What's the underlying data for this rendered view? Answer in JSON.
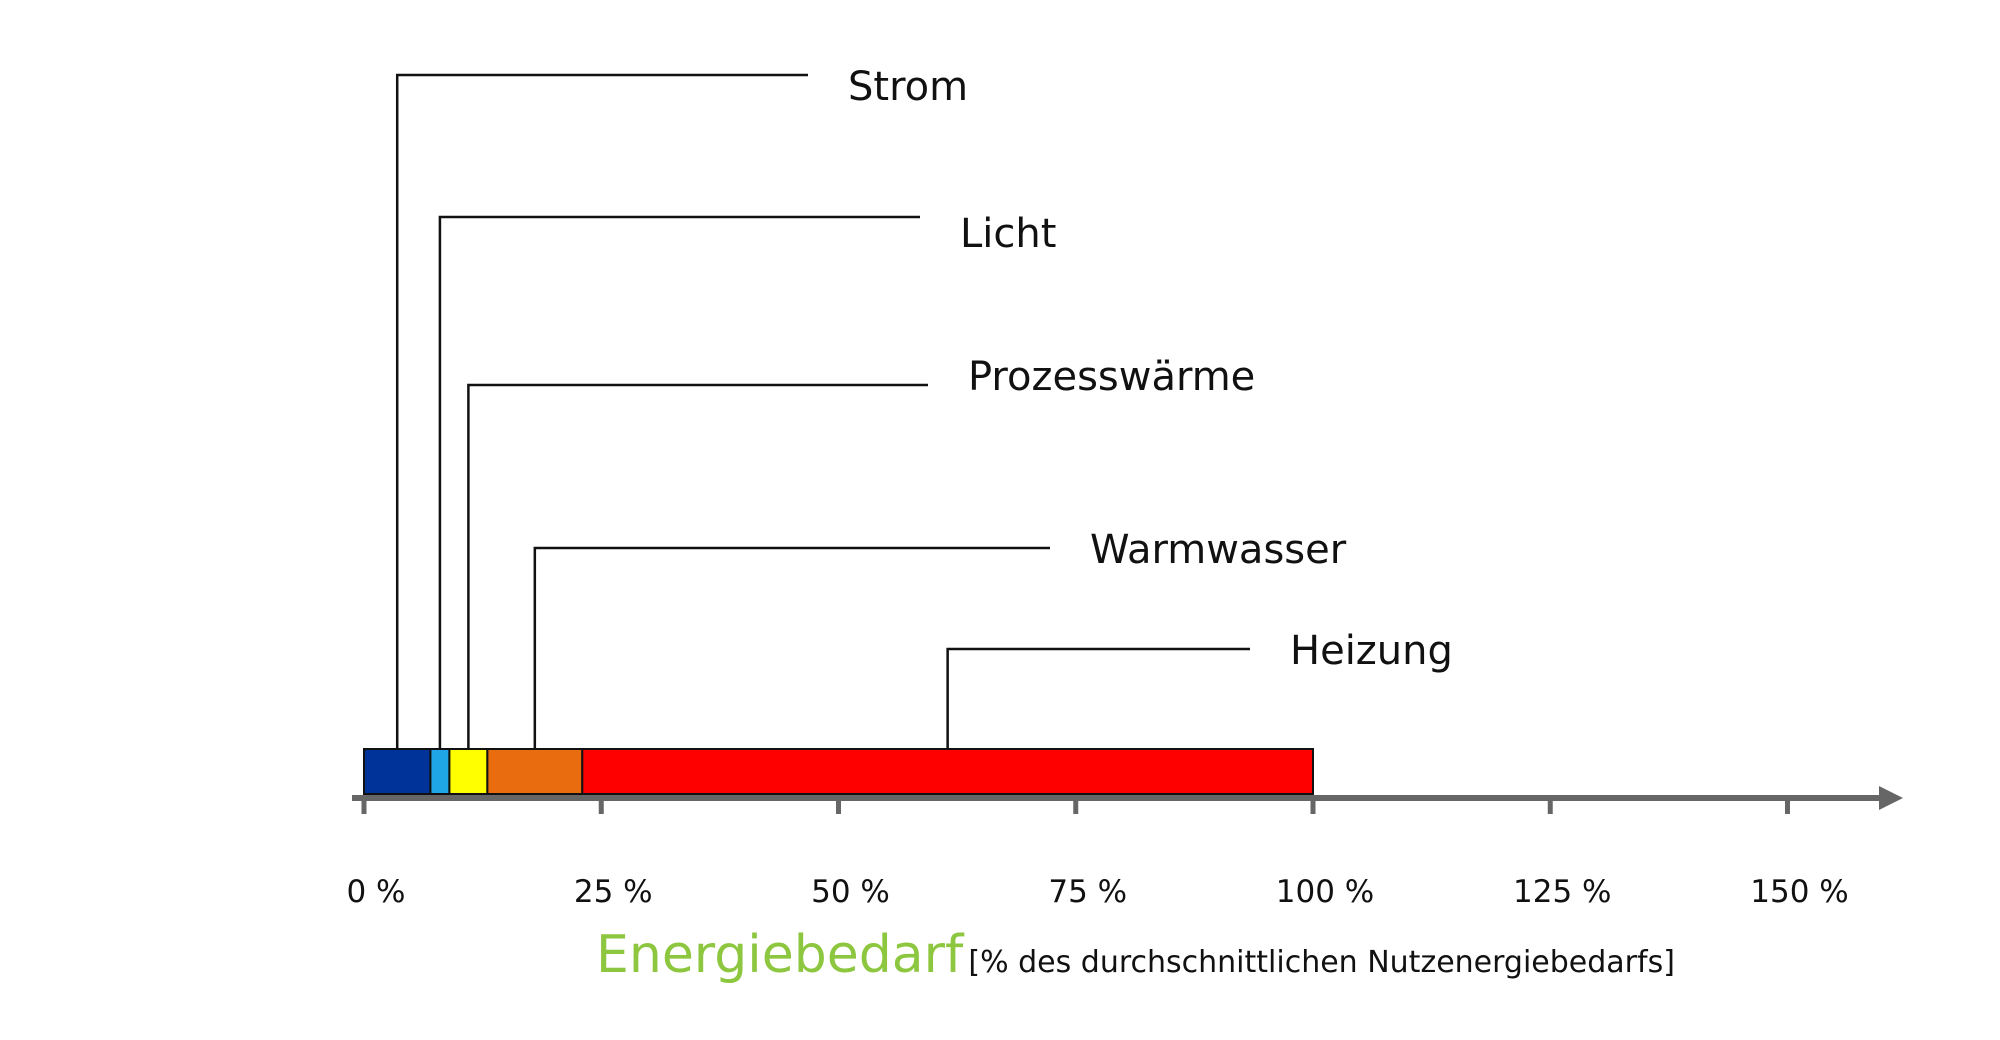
{
  "chart_data": {
    "type": "bar",
    "orientation": "horizontal-stacked",
    "xlim": [
      0,
      160
    ],
    "ticks": [
      0,
      25,
      50,
      75,
      100,
      125,
      150
    ],
    "tick_labels": [
      "0 %",
      "25 %",
      "50 %",
      "75 %",
      "100 %",
      "125 %",
      "150 %"
    ],
    "segments": [
      {
        "name": "Strom",
        "start": 0,
        "end": 7,
        "color": "#003399"
      },
      {
        "name": "Licht",
        "start": 7,
        "end": 9,
        "color": "#1ea6e6"
      },
      {
        "name": "Prozesswärme",
        "start": 9,
        "end": 13,
        "color": "#ffff00"
      },
      {
        "name": "Warmwasser",
        "start": 13,
        "end": 23,
        "color": "#e96c0f"
      },
      {
        "name": "Heizung",
        "start": 23,
        "end": 100,
        "color": "#ff0000"
      }
    ],
    "xlabel": "Energiebedarf",
    "xlabel_unit": "[% des durchschnittlichen Nutzenergiebedarfs]",
    "xlabel_color": "#8dc63f",
    "axis_color": "#666666"
  }
}
